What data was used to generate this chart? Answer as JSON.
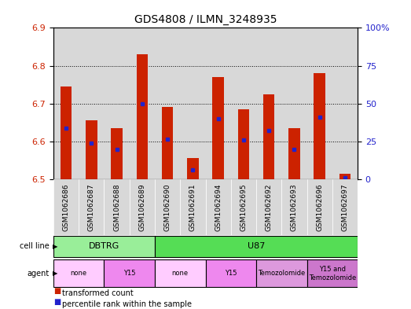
{
  "title": "GDS4808 / ILMN_3248935",
  "samples": [
    "GSM1062686",
    "GSM1062687",
    "GSM1062688",
    "GSM1062689",
    "GSM1062690",
    "GSM1062691",
    "GSM1062694",
    "GSM1062695",
    "GSM1062692",
    "GSM1062693",
    "GSM1062696",
    "GSM1062697"
  ],
  "bar_values": [
    6.745,
    6.655,
    6.635,
    6.83,
    6.69,
    6.555,
    6.77,
    6.685,
    6.725,
    6.635,
    6.78,
    6.515
  ],
  "bar_base": 6.5,
  "blue_dot_values": [
    6.635,
    6.595,
    6.578,
    6.7,
    6.605,
    6.525,
    6.66,
    6.603,
    6.628,
    6.578,
    6.663,
    6.505
  ],
  "ylim_left": [
    6.5,
    6.9
  ],
  "ylim_right": [
    0,
    100
  ],
  "yticks_left": [
    6.5,
    6.6,
    6.7,
    6.8,
    6.9
  ],
  "yticks_right": [
    0,
    25,
    50,
    75,
    100
  ],
  "ytick_labels_right": [
    "0",
    "25",
    "50",
    "75",
    "100%"
  ],
  "bar_color": "#cc2200",
  "dot_color": "#2222cc",
  "cell_line_groups": [
    {
      "label": "DBTRG",
      "start": 0,
      "end": 3,
      "color": "#99ee99"
    },
    {
      "label": "U87",
      "start": 4,
      "end": 11,
      "color": "#55dd55"
    }
  ],
  "agent_groups": [
    {
      "label": "none",
      "start": 0,
      "end": 1,
      "color": "#ffccff"
    },
    {
      "label": "Y15",
      "start": 2,
      "end": 3,
      "color": "#ee88ee"
    },
    {
      "label": "none",
      "start": 4,
      "end": 5,
      "color": "#ffccff"
    },
    {
      "label": "Y15",
      "start": 6,
      "end": 7,
      "color": "#ee88ee"
    },
    {
      "label": "Temozolomide",
      "start": 8,
      "end": 9,
      "color": "#dd99dd"
    },
    {
      "label": "Y15 and\nTemozolomide",
      "start": 10,
      "end": 11,
      "color": "#cc77cc"
    }
  ],
  "legend_red": "transformed count",
  "legend_blue": "percentile rank within the sample",
  "cell_line_label": "cell line",
  "agent_label": "agent"
}
